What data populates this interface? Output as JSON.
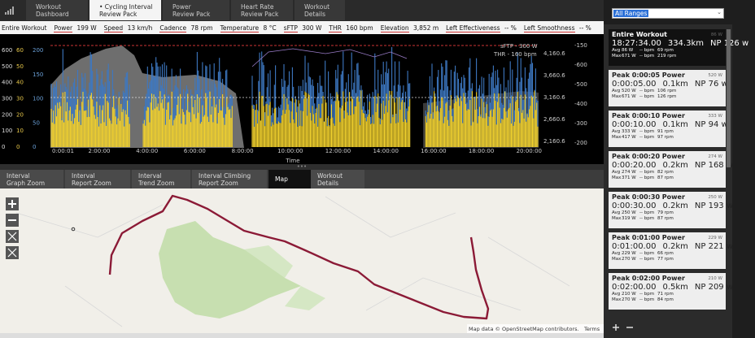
{
  "top_tabs": [
    [
      "Workout",
      "Dashboard"
    ],
    [
      "• Cycling Interval",
      "Review Pack"
    ],
    [
      "Power",
      "Review Pack"
    ],
    [
      "Heart Rate",
      "Review Pack"
    ],
    [
      "Workout",
      "Details"
    ]
  ],
  "range_select": "All Ranges",
  "metrics_label": "Entire Workout",
  "metrics": [
    [
      "Power",
      "199 W"
    ],
    [
      "Speed",
      "13 km/h"
    ],
    [
      "Cadence",
      "78 rpm"
    ],
    [
      "Temperature",
      "8 °C"
    ],
    [
      "sFTP",
      "300 W"
    ],
    [
      "THR",
      "160 bpm"
    ],
    [
      "Elevation",
      "3,852 m"
    ],
    [
      "Left Effectiveness",
      "-- %"
    ],
    [
      "Left Smoothness",
      "-- %"
    ]
  ],
  "chart": {
    "left_axes": [
      [
        "600",
        "500",
        "400",
        "300",
        "200",
        "100",
        "0"
      ],
      [
        "60",
        "50",
        "40",
        "30",
        "20",
        "10",
        "0"
      ],
      [
        "200",
        "150",
        "100",
        "50",
        "0"
      ]
    ],
    "right_axes": [
      [
        "4,160.6",
        "3,660.6",
        "3,160.6",
        "2,660.6",
        "2,160.6"
      ],
      [
        "-150",
        "-600",
        "-500",
        "-400",
        "-300",
        "-200"
      ]
    ],
    "x_ticks": [
      "0:00:01",
      "2:00:00",
      "4:00:00",
      "6:00:00",
      "8:00:00",
      "10:00:00",
      "12:00:00",
      "14:00:00",
      "16:00:00",
      "18:00:00",
      "20:00:00"
    ],
    "x_label": "Time",
    "sftp_label": "sFTP - 300 W",
    "thr_label": "THR - 160 bpm"
  },
  "bottom_tabs": [
    [
      "Interval",
      "Graph Zoom"
    ],
    [
      "Interval",
      "Report Zoom"
    ],
    [
      "Interval",
      "Trend Zoom"
    ],
    [
      "Interval Climbing",
      "Report Zoom"
    ],
    [
      "Map"
    ],
    [
      "Workout",
      "Details"
    ]
  ],
  "map_attribution": "Map data © OpenStreetMap contributors.",
  "map_terms": "Terms",
  "ranges": [
    {
      "title": "Entire Workout",
      "corner": "86 W",
      "time": "18:27:34.00",
      "distance": "334.3km",
      "np": "NP 126 w",
      "avg": [
        "Avg",
        "86 W",
        "-- bpm",
        "69 rpm"
      ],
      "max": [
        "Max",
        "671 W",
        "-- bpm",
        "219 rpm"
      ]
    },
    {
      "title": "Peak 0:00:05 Power",
      "corner": "520 W",
      "time": "0:00:05.00",
      "distance": "0.1km",
      "np": "NP 76 w",
      "avg": [
        "Avg",
        "520 W",
        "-- bpm",
        "106 rpm"
      ],
      "max": [
        "Max",
        "671 W",
        "-- bpm",
        "126 rpm"
      ]
    },
    {
      "title": "Peak 0:00:10 Power",
      "corner": "333 W",
      "time": "0:00:10.00",
      "distance": "0.1km",
      "np": "NP 94 w",
      "avg": [
        "Avg",
        "333 W",
        "-- bpm",
        "91 rpm"
      ],
      "max": [
        "Max",
        "417 W",
        "-- bpm",
        "97 rpm"
      ]
    },
    {
      "title": "Peak 0:00:20 Power",
      "corner": "274 W",
      "time": "0:00:20.00",
      "distance": "0.2km",
      "np": "NP 168 w",
      "avg": [
        "Avg",
        "274 W",
        "-- bpm",
        "82 rpm"
      ],
      "max": [
        "Max",
        "371 W",
        "-- bpm",
        "87 rpm"
      ]
    },
    {
      "title": "Peak 0:00:30 Power",
      "corner": "250 W",
      "time": "0:00:30.00",
      "distance": "0.2km",
      "np": "NP 193 w",
      "avg": [
        "Avg",
        "250 W",
        "-- bpm",
        "79 rpm"
      ],
      "max": [
        "Max",
        "319 W",
        "-- bpm",
        "87 rpm"
      ]
    },
    {
      "title": "Peak 0:01:00 Power",
      "corner": "229 W",
      "time": "0:01:00.00",
      "distance": "0.2km",
      "np": "NP 221 w",
      "avg": [
        "Avg",
        "229 W",
        "-- bpm",
        "66 rpm"
      ],
      "max": [
        "Max",
        "270 W",
        "-- bpm",
        "77 rpm"
      ]
    },
    {
      "title": "Peak 0:02:00 Power",
      "corner": "210 W",
      "time": "0:02:00.00",
      "distance": "0.5km",
      "np": "NP 209 w",
      "avg": [
        "Avg",
        "210 W",
        "-- bpm",
        "71 rpm"
      ],
      "max": [
        "Max",
        "270 W",
        "-- bpm",
        "84 rpm"
      ]
    }
  ]
}
